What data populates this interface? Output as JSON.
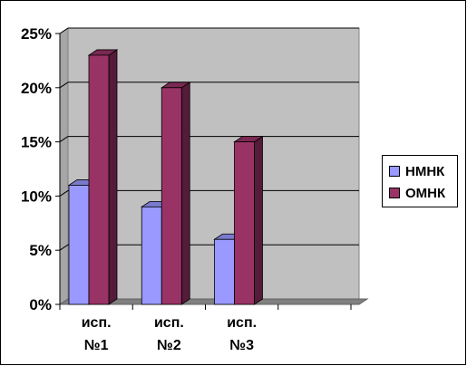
{
  "chart_data": {
    "type": "bar",
    "categories": [
      [
        "исп.",
        "№1"
      ],
      [
        "исп.",
        "№2"
      ],
      [
        "исп.",
        "№3"
      ],
      [
        "",
        ""
      ]
    ],
    "series": [
      {
        "name": "НМНК",
        "values": [
          0.11,
          0.09,
          0.06,
          null
        ],
        "color": "#9999FF"
      },
      {
        "name": "ОМНК",
        "values": [
          0.23,
          0.2,
          0.15,
          null
        ],
        "color": "#993366"
      }
    ],
    "yticks": [
      "0%",
      "5%",
      "10%",
      "15%",
      "20%",
      "25%"
    ],
    "ylim": [
      0,
      0.25
    ],
    "grid": true,
    "legend_position": "right",
    "style": "3d-clustered",
    "wall_color": "#C0C0C0",
    "floor_color": "#808080"
  }
}
